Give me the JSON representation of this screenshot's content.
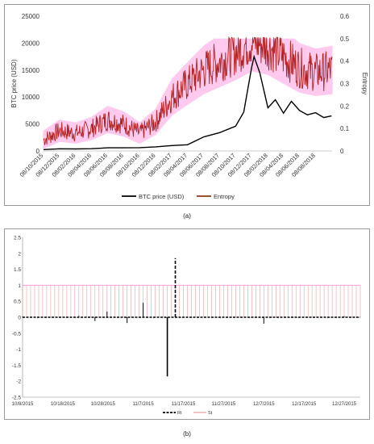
{
  "chart_data": [
    {
      "type": "line",
      "panel_label": "(a)",
      "xlabel": "",
      "ylabel_left": "BTC price (USD)",
      "ylabel_right": "Entropy",
      "ylim_left": [
        0,
        25000
      ],
      "ylim_right": [
        0,
        0.6
      ],
      "yticks_left": [
        "0",
        "5000",
        "10000",
        "15000",
        "20000",
        "25000"
      ],
      "yticks_right": [
        "0",
        "0.1",
        "0.2",
        "0.3",
        "0.4",
        "0.5",
        "0.6"
      ],
      "x_tick_labels": [
        "08/10/2015",
        "08/12/2015",
        "08/02/2016",
        "08/04/2016",
        "08/06/2016",
        "08/08/2016",
        "08/10/2016",
        "08/12/2016",
        "08/02/2017",
        "08/04/2017",
        "08/06/2017",
        "08/08/2017",
        "08/10/2017",
        "08/12/2017",
        "08/02/2018",
        "08/04/2018",
        "08/06/2018",
        "08/08/2018"
      ],
      "legend_position": "bottom",
      "grid": false,
      "series": [
        {
          "name": "BTC price (USD)",
          "color": "#000000",
          "axis": "left",
          "x": [
            "08/10/2015",
            "08/12/2015",
            "08/02/2016",
            "08/04/2016",
            "08/06/2016",
            "08/08/2016",
            "08/10/2016",
            "08/12/2016",
            "08/02/2017",
            "08/04/2017",
            "08/06/2017",
            "08/08/2017",
            "08/10/2017",
            "08/11/2017",
            "08/12/2017",
            "17/12/2017",
            "08/01/2018",
            "08/02/2018",
            "08/03/2018",
            "08/04/2018",
            "08/05/2018",
            "08/06/2018",
            "08/07/2018",
            "08/08/2018",
            "08/09/2018",
            "08/10/2018"
          ],
          "values": [
            250,
            400,
            380,
            420,
            580,
            590,
            620,
            760,
            1000,
            1150,
            2600,
            3400,
            4600,
            7200,
            15500,
            17500,
            14500,
            8000,
            9500,
            7000,
            9200,
            7500,
            6700,
            7100,
            6200,
            6500
          ]
        },
        {
          "name": "Entropy",
          "color": "#b22222",
          "band_color": "#ff66cc",
          "axis": "right",
          "x": [
            "08/10/2015",
            "08/12/2015",
            "08/02/2016",
            "08/04/2016",
            "08/06/2016",
            "08/08/2016",
            "08/10/2016",
            "08/12/2016",
            "08/02/2017",
            "08/04/2017",
            "08/06/2017",
            "08/08/2017",
            "08/10/2017",
            "08/12/2017",
            "08/02/2018",
            "08/04/2018",
            "08/06/2018",
            "08/08/2018",
            "08/10/2018"
          ],
          "values": [
            0.05,
            0.09,
            0.08,
            0.1,
            0.14,
            0.12,
            0.08,
            0.13,
            0.24,
            0.3,
            0.36,
            0.4,
            0.44,
            0.49,
            0.47,
            0.42,
            0.37,
            0.35,
            0.36
          ]
        }
      ]
    },
    {
      "type": "line",
      "panel_label": "(b)",
      "xlabel": "",
      "ylabel": "",
      "ylim": [
        -2.5,
        2.5
      ],
      "yticks": [
        "-2.5",
        "-2",
        "-1.5",
        "-1",
        "-0.5",
        "0",
        "0.5",
        "1",
        "1.5",
        "2",
        "2.5"
      ],
      "x_tick_labels": [
        "10/8/2015",
        "10/18/2015",
        "10/28/2015",
        "11/7/2015",
        "11/17/2015",
        "11/27/2015",
        "12/7/2015",
        "12/17/2015",
        "12/27/2015"
      ],
      "legend_position": "bottom",
      "grid": false,
      "series": [
        {
          "name": "Rt",
          "color": "#000000",
          "style": "dashed",
          "x": [
            "10/8/2015",
            "10/22/2015",
            "10/26/2015",
            "10/29/2015",
            "11/3/2015",
            "11/7/2015",
            "11/13/2015",
            "11/15/2015",
            "12/7/2015",
            "12/27/2015"
          ],
          "values": [
            0.02,
            0.04,
            -0.12,
            0.18,
            -0.18,
            0.45,
            -1.85,
            1.85,
            -0.2,
            0.03
          ]
        },
        {
          "name": "St",
          "color": "#e8a0a0",
          "style": "solid",
          "range": [
            0,
            1
          ]
        }
      ]
    }
  ]
}
